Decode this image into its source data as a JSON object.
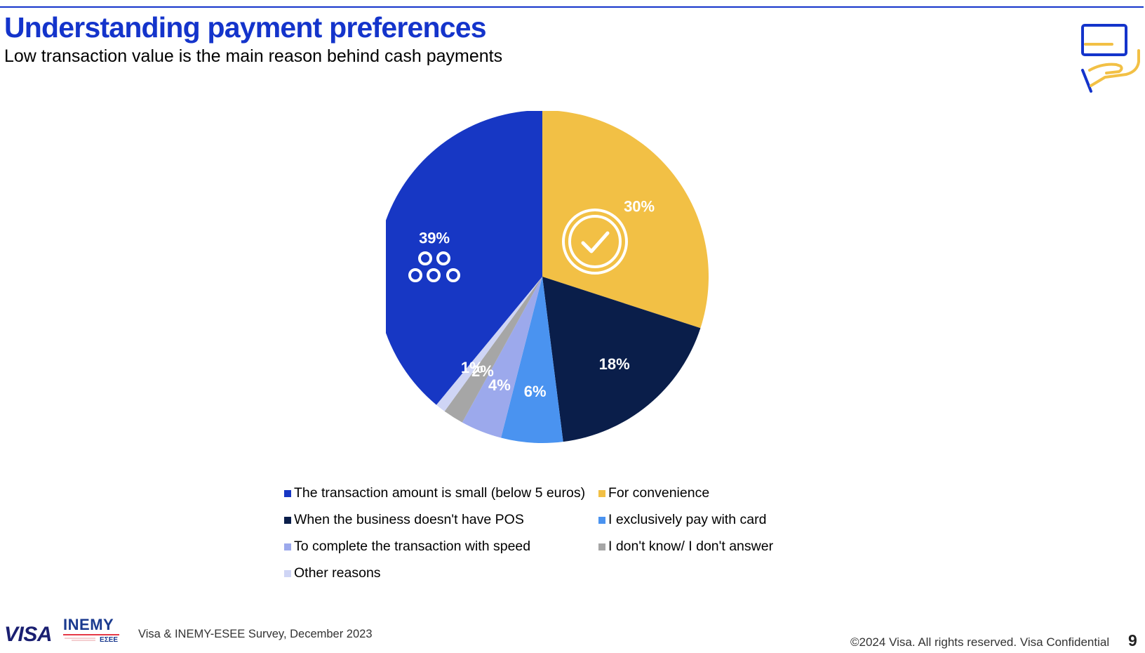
{
  "header": {
    "title": "Understanding payment preferences",
    "subtitle": "Low transaction value is the main reason behind cash payments"
  },
  "chart_data": {
    "type": "pie",
    "slices": [
      {
        "label": "For convenience",
        "value": 30,
        "display": "30%",
        "color": "#f2c045"
      },
      {
        "label": "When the business doesn't have POS",
        "value": 18,
        "display": "18%",
        "color": "#0a1e4a"
      },
      {
        "label": "I exclusively pay with card",
        "value": 6,
        "display": "6%",
        "color": "#4a93f0"
      },
      {
        "label": "To complete the transaction with speed",
        "value": 4,
        "display": "4%",
        "color": "#9ca9ec"
      },
      {
        "label": "I don't know/ I don't answer",
        "value": 2,
        "display": "2%",
        "color": "#a6a6a6"
      },
      {
        "label": "Other reasons",
        "value": 1,
        "display": "1%",
        "color": "#cfd5f5"
      },
      {
        "label": "The transaction amount is small (below 5 euros)",
        "value": 39,
        "display": "39%",
        "color": "#1737c4"
      }
    ],
    "start_angle": "12 o'clock, clockwise",
    "legend_position": "bottom",
    "slice_icons": [
      {
        "slice": "For convenience",
        "icon": "check-circle-icon"
      },
      {
        "slice": "The transaction amount is small (below 5 euros)",
        "icon": "coins-icon"
      }
    ]
  },
  "legend": [
    {
      "label": "The transaction amount is small (below 5 euros)",
      "color": "#1737c4"
    },
    {
      "label": "For convenience",
      "color": "#f2c045"
    },
    {
      "label": "When the business doesn't have POS",
      "color": "#0a1e4a"
    },
    {
      "label": "I exclusively pay with card",
      "color": "#4a93f0"
    },
    {
      "label": "To complete the transaction with speed",
      "color": "#9ca9ec"
    },
    {
      "label": "I don't know/ I don't answer",
      "color": "#a6a6a6"
    },
    {
      "label": "Other reasons",
      "color": "#cfd5f5"
    }
  ],
  "header_icon": "hand-holding-card-icon",
  "footer": {
    "visa_logo": "VISA",
    "partner_logo": "INEMY",
    "partner_logo_sub": "ΕΣΕΕ",
    "source": "Visa & INEMY-ESEE Survey, December 2023",
    "copyright": "©2024 Visa. All rights reserved. Visa Confidential",
    "page_number": "9"
  },
  "colors": {
    "brand_blue": "#1434cb",
    "visa_navy": "#1a1f71",
    "accent_gold": "#f2c045"
  }
}
